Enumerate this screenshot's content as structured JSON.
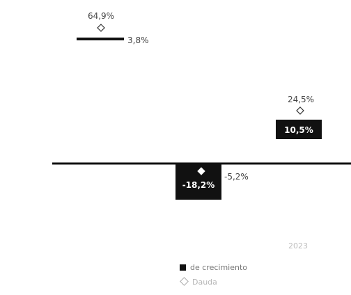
{
  "chart_data": {
    "type": "bar",
    "categories": [
      "",
      "",
      "2023"
    ],
    "series": [
      {
        "name": "",
        "values": [
          3.8,
          null,
          -18.2
        ],
        "labels": [
          "3,8%",
          "",
          "-18,2%"
        ],
        "marker": "bar",
        "color": "#111111"
      },
      {
        "name": "",
        "values": [
          null,
          null,
          10.5
        ],
        "labels": [
          "",
          "",
          "10,5%"
        ],
        "marker": "bar",
        "color": "#111111"
      },
      {
        "name": "",
        "values": [
          64.9,
          null,
          24.5
        ],
        "labels": [
          "64,9%",
          "",
          "24,5%"
        ],
        "marker": "diamond-open"
      },
      {
        "name": "",
        "values": [
          null,
          null,
          -5.2
        ],
        "labels": [
          "",
          "",
          "-5,2%"
        ],
        "marker": "diamond-filled"
      }
    ],
    "legend": {
      "placement": "bottom",
      "items": [
        {
          "label": "",
          "swatch": "none"
        },
        {
          "label": "de crecimiento",
          "swatch": "square"
        },
        {
          "label": "",
          "swatch": "none"
        },
        {
          "label": "Dauda",
          "swatch": "diamond"
        }
      ]
    },
    "colors": {
      "bar": "#111111",
      "axis": "#111111",
      "faint_text": "#bdbdbd"
    }
  }
}
